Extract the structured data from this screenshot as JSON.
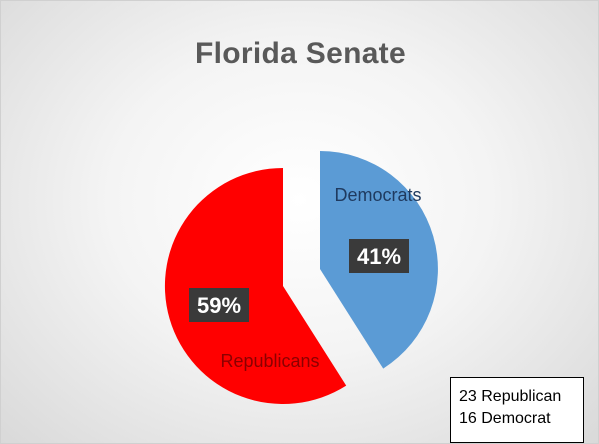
{
  "chart_data": {
    "type": "pie",
    "title": "Florida Senate",
    "slices": [
      {
        "label": "Democrats",
        "value": 41,
        "value_label": "41%",
        "color": "#5b9bd5"
      },
      {
        "label": "Republicans",
        "value": 59,
        "value_label": "59%",
        "color": "#ff0000"
      }
    ],
    "exploded": true,
    "data_label_style": "dark box with white text",
    "note_lines": [
      "23 Republican",
      "16 Democrat"
    ]
  }
}
